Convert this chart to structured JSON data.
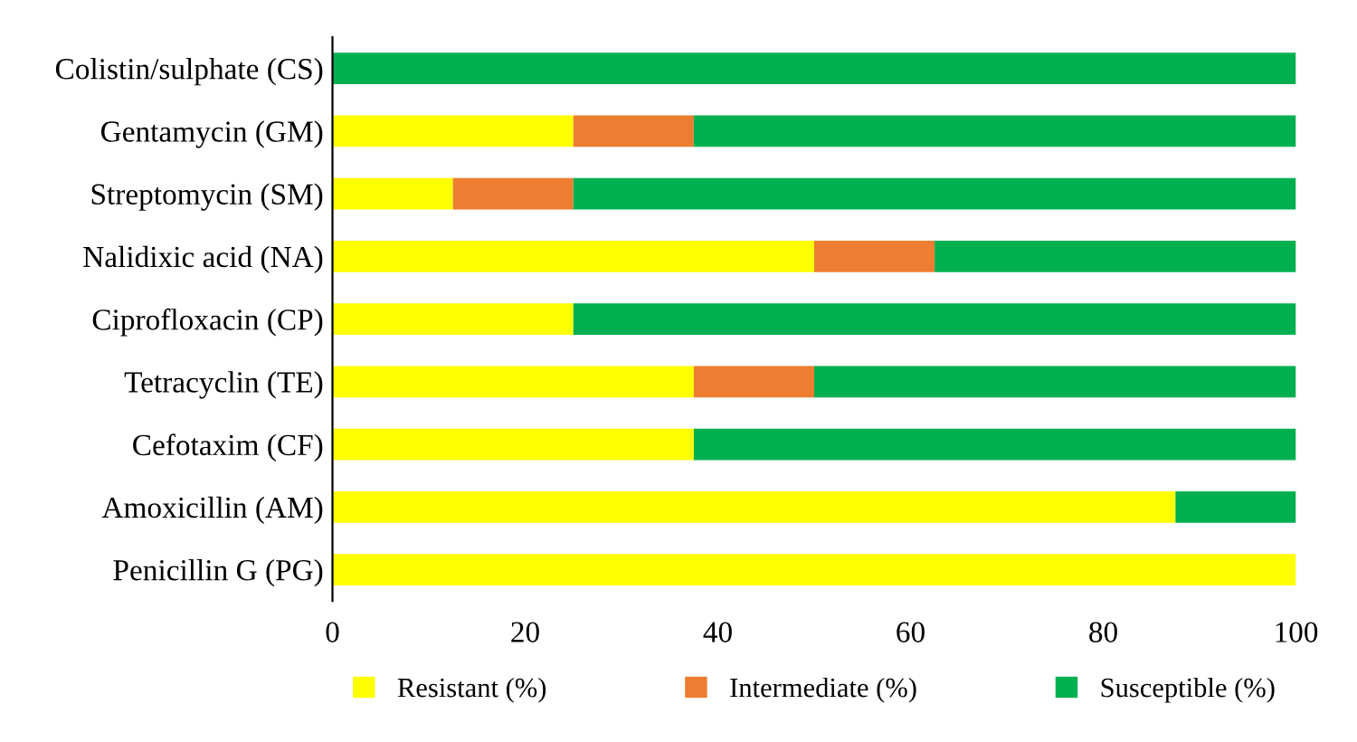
{
  "chart_data": {
    "type": "bar",
    "orientation": "horizontal",
    "stacked": true,
    "categories": [
      "Colistin/sulphate (CS)",
      "Gentamycin (GM)",
      "Streptomycin (SM)",
      "Nalidixic acid (NA)",
      "Ciprofloxacin (CP)",
      "Tetracyclin (TE)",
      "Cefotaxim (CF)",
      "Amoxicillin (AM)",
      "Penicillin G (PG)"
    ],
    "series": [
      {
        "name": "Resistant (%)",
        "color": "#ffff00",
        "values": [
          0,
          25,
          12.5,
          50,
          25,
          37.5,
          37.5,
          87.5,
          100
        ]
      },
      {
        "name": "Intermediate (%)",
        "color": "#ed7d31",
        "values": [
          0,
          12.5,
          12.5,
          12.5,
          0,
          12.5,
          0,
          0,
          0
        ]
      },
      {
        "name": "Susceptible (%)",
        "color": "#00b050",
        "values": [
          100,
          62.5,
          75,
          37.5,
          75,
          50,
          62.5,
          12.5,
          0
        ]
      }
    ],
    "xlim": [
      0,
      100
    ],
    "xticks": [
      0,
      20,
      40,
      60,
      80,
      100
    ],
    "grid": false,
    "legend": "bottom"
  }
}
